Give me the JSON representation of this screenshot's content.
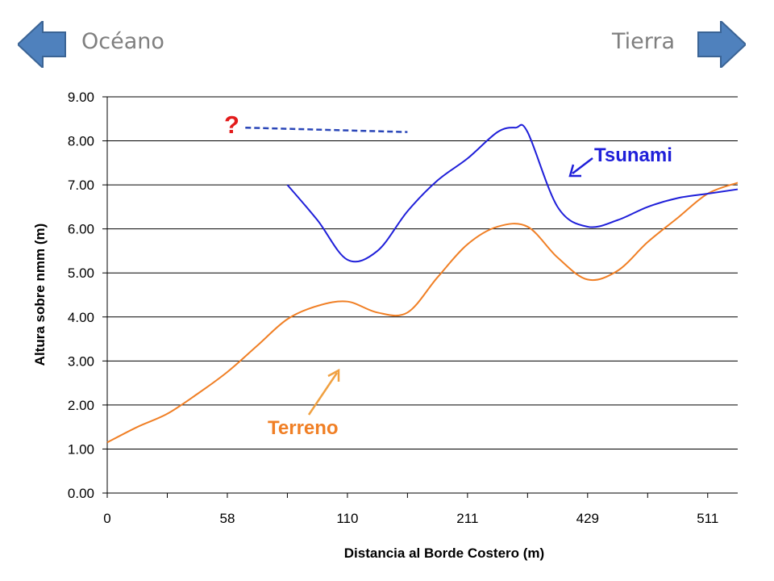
{
  "header": {
    "left_label": "Océano",
    "right_label": "Tierra",
    "arrow_color": "#4f81bd"
  },
  "annotations": {
    "question_mark": "?",
    "tsunami_label": "Tsunami",
    "terrain_label": "Terreno"
  },
  "colors": {
    "tsunami": "#1f1fd9",
    "terrain": "#f07f25",
    "question": "#e31b1b",
    "dashed": "#2a46b8"
  },
  "chart_data": {
    "type": "line",
    "title": "",
    "xlabel": "Distancia al Borde Costero (m)",
    "ylabel": "Altura sobre nmm (m)",
    "categories": [
      "0",
      "58",
      "110",
      "211",
      "429",
      "511"
    ],
    "ylim": [
      0,
      9
    ],
    "yticks": [
      "0.00",
      "1.00",
      "2.00",
      "3.00",
      "4.00",
      "5.00",
      "6.00",
      "7.00",
      "8.00",
      "9.00"
    ],
    "grid": true,
    "series": [
      {
        "name": "Terreno",
        "x": [
          0,
          0.5,
          1,
          1.5,
          2,
          2.5,
          3,
          3.5,
          4,
          4.5,
          5,
          5.5,
          6,
          6.5,
          7,
          7.5,
          8,
          8.5,
          9,
          9.5,
          10,
          10.5
        ],
        "values": [
          1.15,
          1.5,
          1.8,
          2.25,
          2.75,
          3.35,
          3.95,
          4.25,
          4.35,
          4.1,
          4.1,
          4.9,
          5.65,
          6.05,
          6.05,
          5.35,
          4.85,
          5.05,
          5.7,
          6.25,
          6.8,
          7.05
        ]
      },
      {
        "name": "Tsunami",
        "x": [
          3,
          3.5,
          4,
          4.5,
          5,
          5.5,
          6,
          6.5,
          6.8,
          7,
          7.5,
          8,
          8.5,
          9,
          9.5,
          10,
          10.5
        ],
        "values": [
          7.0,
          6.2,
          5.3,
          5.5,
          6.4,
          7.1,
          7.6,
          8.2,
          8.3,
          8.2,
          6.5,
          6.05,
          6.2,
          6.5,
          6.7,
          6.8,
          6.9
        ]
      }
    ],
    "reference_line": {
      "style": "dashed",
      "x": [
        2.3,
        5.0
      ],
      "values": [
        8.3,
        8.2
      ]
    }
  }
}
